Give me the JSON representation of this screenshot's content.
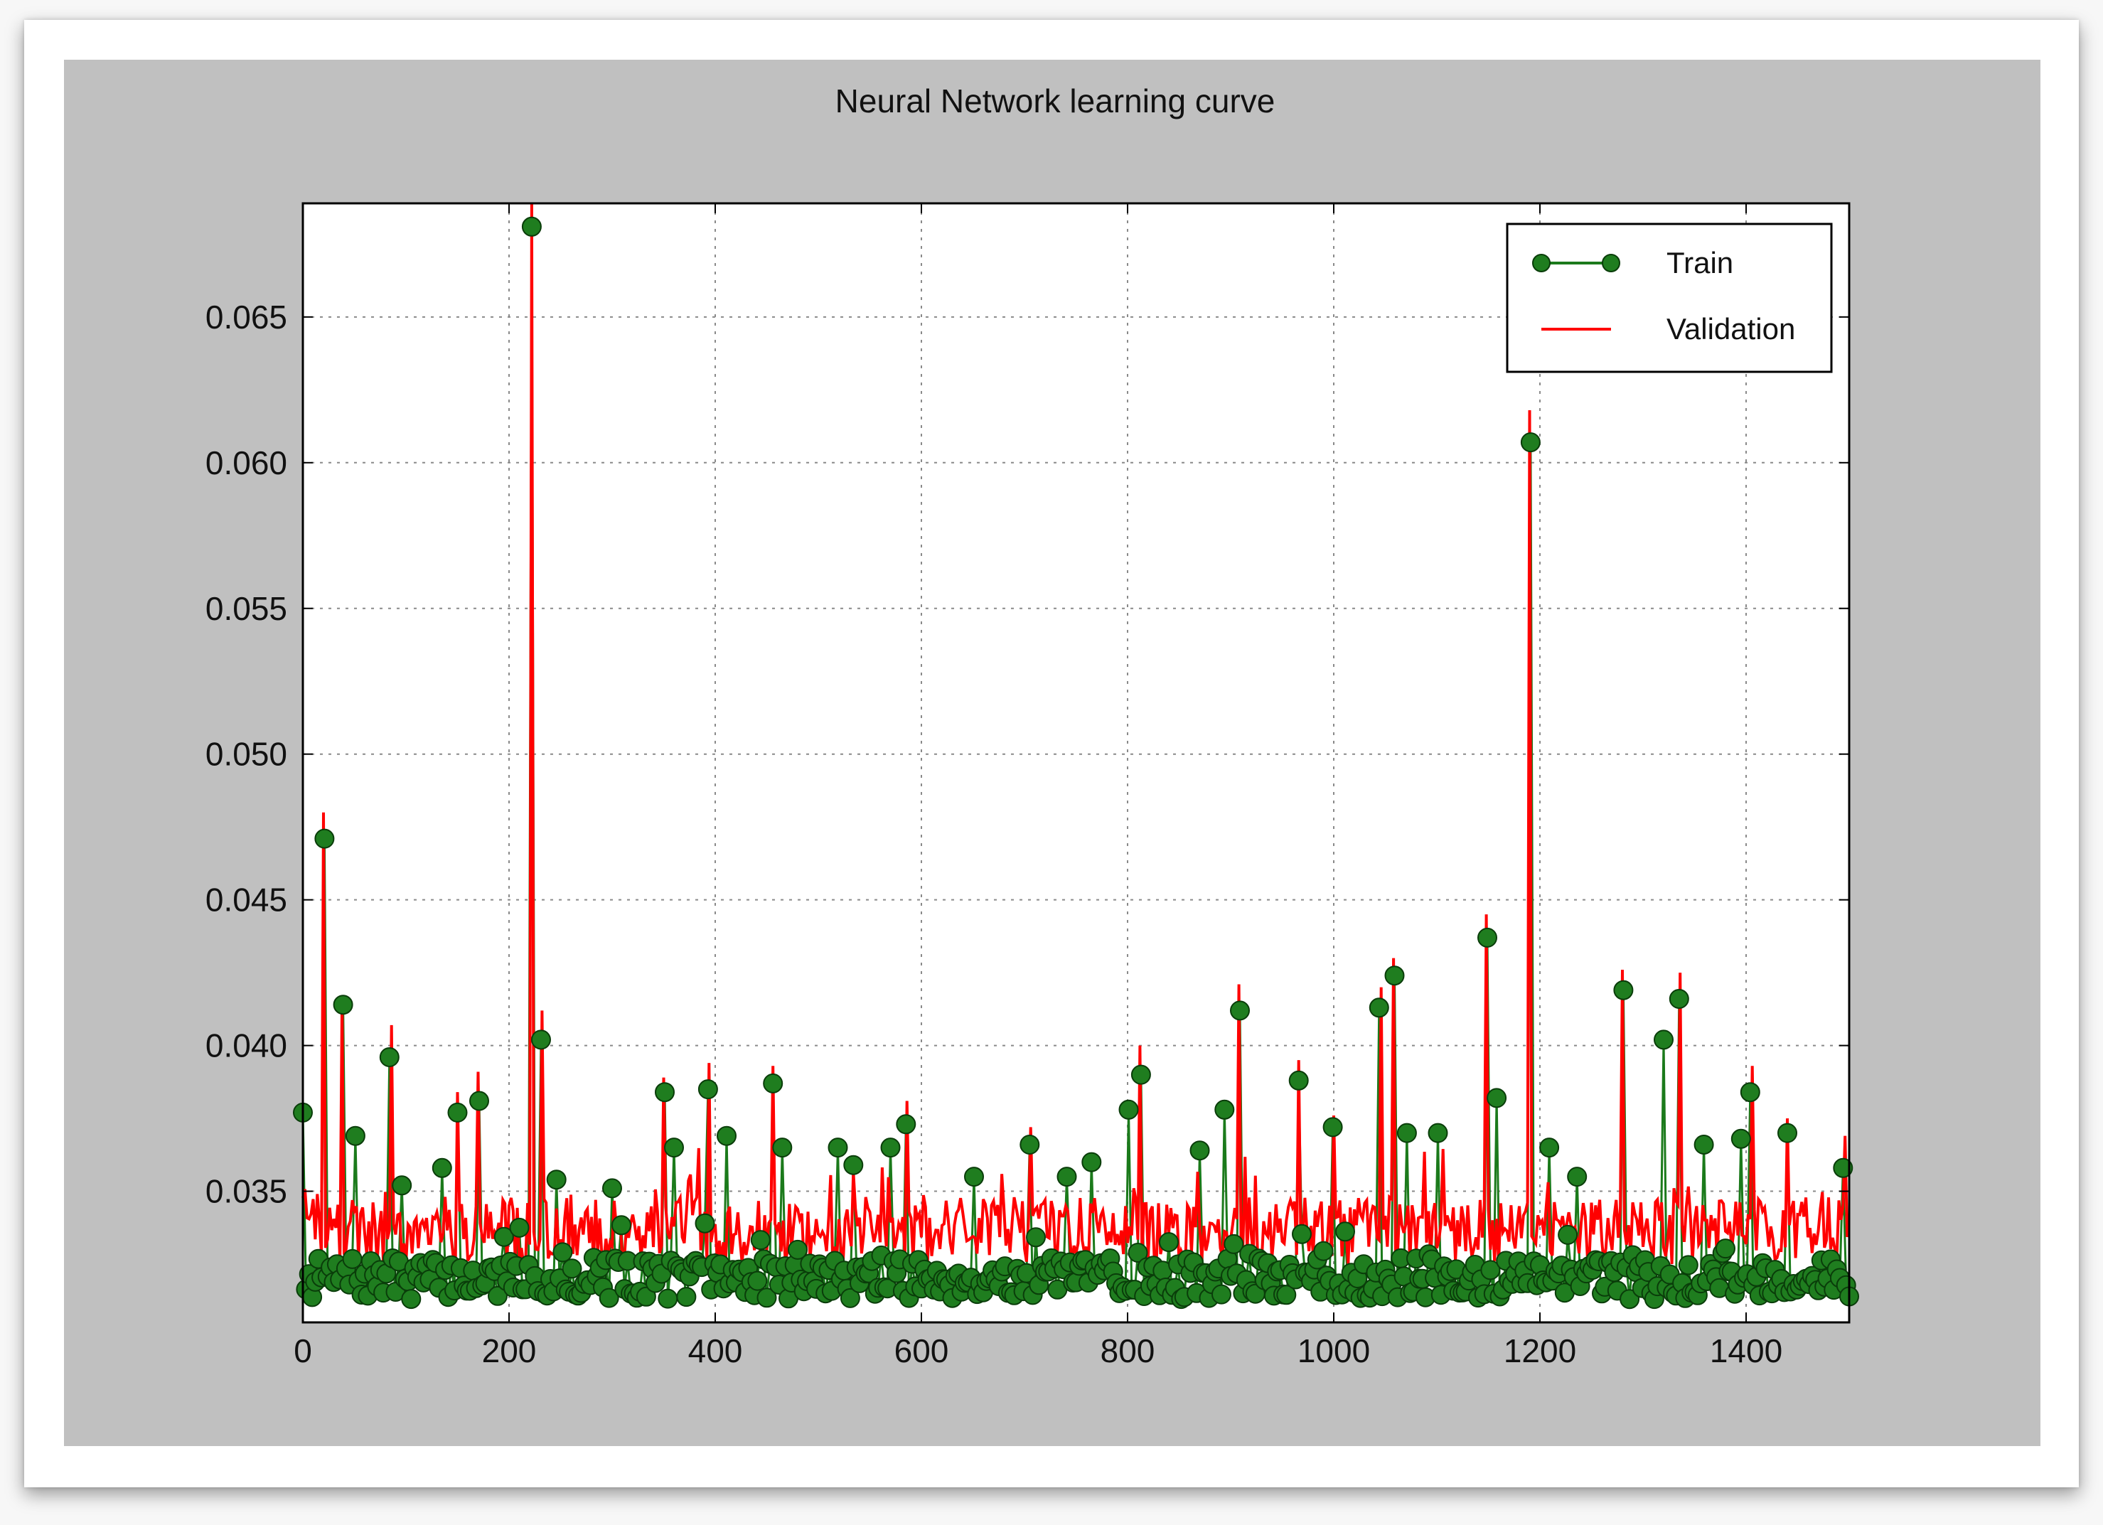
{
  "chart_data": {
    "type": "line",
    "title": "Neural Network learning curve",
    "xlabel": "",
    "ylabel": "",
    "xlim": [
      0,
      1500
    ],
    "ylim": [
      0.0305,
      0.0689
    ],
    "xticks": [
      0,
      200,
      400,
      600,
      800,
      1000,
      1200,
      1400
    ],
    "yticks": [
      0.035,
      0.04,
      0.045,
      0.05,
      0.055,
      0.06,
      0.065
    ],
    "xtick_labels": [
      "0",
      "200",
      "400",
      "600",
      "800",
      "1000",
      "1200",
      "1400"
    ],
    "ytick_labels": [
      "0.035",
      "0.040",
      "0.045",
      "0.050",
      "0.055",
      "0.060",
      "0.065"
    ],
    "grid": true,
    "legend_position": "top-right",
    "series": [
      {
        "name": "Train",
        "style": "line-with-circle-markers",
        "color": "#1b7a1b",
        "marker_color": "#1f7d1f",
        "marker_edge": "#0a3d0a",
        "baseline_range": [
          0.0313,
          0.0327
        ],
        "peaks": [
          [
            0,
            0.0377
          ],
          [
            20,
            0.0471
          ],
          [
            38,
            0.0414
          ],
          [
            52,
            0.0369
          ],
          [
            85,
            0.0396
          ],
          [
            95,
            0.0352
          ],
          [
            135,
            0.0358
          ],
          [
            150,
            0.0377
          ],
          [
            170,
            0.0381
          ],
          [
            222,
            0.0681
          ],
          [
            232,
            0.0402
          ],
          [
            245,
            0.0354
          ],
          [
            300,
            0.0351
          ],
          [
            350,
            0.0384
          ],
          [
            360,
            0.0365
          ],
          [
            393,
            0.0385
          ],
          [
            410,
            0.0369
          ],
          [
            455,
            0.0387
          ],
          [
            465,
            0.0365
          ],
          [
            520,
            0.0365
          ],
          [
            535,
            0.0359
          ],
          [
            570,
            0.0365
          ],
          [
            585,
            0.0373
          ],
          [
            650,
            0.0355
          ],
          [
            705,
            0.0366
          ],
          [
            740,
            0.0355
          ],
          [
            765,
            0.036
          ],
          [
            800,
            0.0378
          ],
          [
            812,
            0.039
          ],
          [
            870,
            0.0364
          ],
          [
            895,
            0.0378
          ],
          [
            908,
            0.0412
          ],
          [
            965,
            0.0388
          ],
          [
            1000,
            0.0372
          ],
          [
            1045,
            0.0413
          ],
          [
            1058,
            0.0424
          ],
          [
            1070,
            0.037
          ],
          [
            1100,
            0.037
          ],
          [
            1148,
            0.0437
          ],
          [
            1158,
            0.0382
          ],
          [
            1190,
            0.0607
          ],
          [
            1210,
            0.0365
          ],
          [
            1235,
            0.0355
          ],
          [
            1280,
            0.0419
          ],
          [
            1320,
            0.0402
          ],
          [
            1335,
            0.0416
          ],
          [
            1360,
            0.0366
          ],
          [
            1395,
            0.0368
          ],
          [
            1405,
            0.0384
          ],
          [
            1440,
            0.037
          ],
          [
            1495,
            0.0358
          ]
        ]
      },
      {
        "name": "Validation",
        "style": "line",
        "color": "#ff0000",
        "baseline_range": [
          0.0325,
          0.0348
        ],
        "peaks": [
          [
            20,
            0.048
          ],
          [
            38,
            0.0415
          ],
          [
            85,
            0.0407
          ],
          [
            150,
            0.0384
          ],
          [
            170,
            0.0391
          ],
          [
            222,
            0.0689
          ],
          [
            232,
            0.0412
          ],
          [
            350,
            0.0389
          ],
          [
            393,
            0.0394
          ],
          [
            455,
            0.0393
          ],
          [
            585,
            0.0381
          ],
          [
            705,
            0.0372
          ],
          [
            812,
            0.04
          ],
          [
            908,
            0.0421
          ],
          [
            965,
            0.0395
          ],
          [
            1000,
            0.0376
          ],
          [
            1045,
            0.042
          ],
          [
            1058,
            0.043
          ],
          [
            1148,
            0.0445
          ],
          [
            1190,
            0.0618
          ],
          [
            1280,
            0.0426
          ],
          [
            1335,
            0.0425
          ],
          [
            1405,
            0.0393
          ],
          [
            1440,
            0.0375
          ],
          [
            1495,
            0.0369
          ]
        ]
      }
    ]
  }
}
